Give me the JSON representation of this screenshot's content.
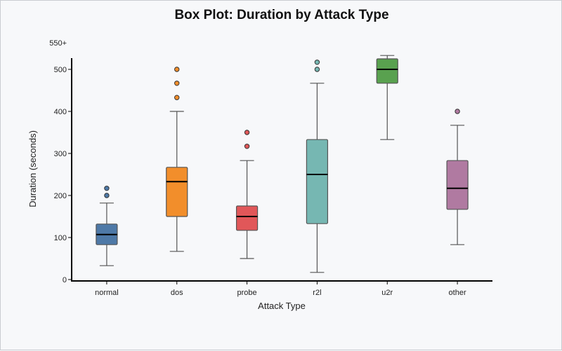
{
  "chart_data": {
    "type": "boxplot",
    "title": "Box Plot: Duration by Attack Type",
    "xlabel": "Attack Type",
    "ylabel": "Duration (seconds)",
    "ylim": [
      0,
      550
    ],
    "yticks": [
      0,
      100,
      200,
      300,
      400,
      500
    ],
    "ytick_top_label": "550+",
    "ytick_top_value": 550,
    "grid": false,
    "categories": [
      "normal",
      "dos",
      "probe",
      "r2l",
      "u2r",
      "other"
    ],
    "colors": [
      "#4e79a7",
      "#f28e2b",
      "#e15759",
      "#76b7b2",
      "#59a14f",
      "#b07aa1"
    ],
    "boxes": [
      {
        "name": "normal",
        "whisker_low": 33,
        "q1": 83,
        "median": 107,
        "q3": 132,
        "whisker_high": 182,
        "outliers": [
          200,
          217
        ]
      },
      {
        "name": "dos",
        "whisker_low": 67,
        "q1": 150,
        "median": 233,
        "q3": 267,
        "whisker_high": 400,
        "outliers": [
          433,
          467,
          500
        ]
      },
      {
        "name": "probe",
        "whisker_low": 50,
        "q1": 117,
        "median": 150,
        "q3": 175,
        "whisker_high": 283,
        "outliers": [
          317,
          350
        ]
      },
      {
        "name": "r2l",
        "whisker_low": 17,
        "q1": 133,
        "median": 250,
        "q3": 333,
        "whisker_high": 467,
        "outliers": [
          500,
          517
        ]
      },
      {
        "name": "u2r",
        "whisker_low": 333,
        "q1": 467,
        "median": 500,
        "q3": 525,
        "whisker_high": 533,
        "outliers": []
      },
      {
        "name": "other",
        "whisker_low": 83,
        "q1": 167,
        "median": 217,
        "q3": 283,
        "whisker_high": 367,
        "outliers": [
          400
        ]
      }
    ]
  }
}
